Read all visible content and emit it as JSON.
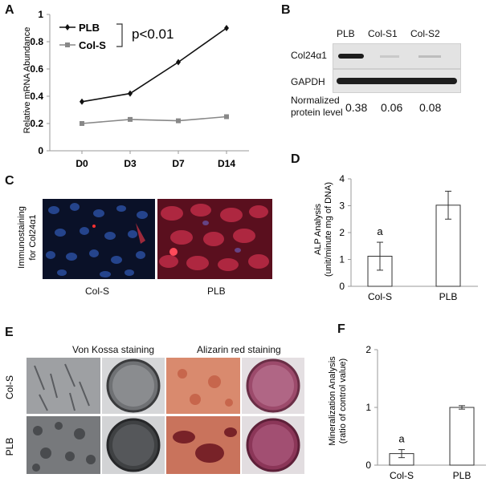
{
  "panels": {
    "A": {
      "letter": "A",
      "ylabel": "Relative mRNA Abundance",
      "pvalue": "p<0.01",
      "legend": [
        "PLB",
        "Col-S"
      ],
      "chart_data": {
        "type": "line",
        "categories": [
          "D0",
          "D3",
          "D7",
          "D14"
        ],
        "series": [
          {
            "name": "PLB",
            "values": [
              0.36,
              0.42,
              0.65,
              0.9
            ],
            "color": "#111111"
          },
          {
            "name": "Col-S",
            "values": [
              0.2,
              0.23,
              0.22,
              0.25
            ],
            "color": "#888888"
          }
        ],
        "ylim": [
          0,
          1
        ],
        "yticks": [
          "0",
          "0.2",
          "0.4",
          "0.6",
          "0.8",
          "1"
        ]
      }
    },
    "B": {
      "letter": "B",
      "lanes": [
        "PLB",
        "Col-S1",
        "Col-S2"
      ],
      "rows": [
        "Col24α1",
        "GAPDH"
      ],
      "norm_label_1": "Normalized",
      "norm_label_2": "protein level",
      "norm_values": [
        "0.38",
        "0.06",
        "0.08"
      ]
    },
    "C": {
      "letter": "C",
      "ylabel_1": "Immunostaining",
      "ylabel_2": "for Col24α1",
      "captions": [
        "Col-S",
        "PLB"
      ]
    },
    "D": {
      "letter": "D",
      "ylabel_1": "ALP Analysis",
      "ylabel_2": "(unit/minute mg of DNA)",
      "sig": "a",
      "chart_data": {
        "type": "bar",
        "categories": [
          "Col-S",
          "PLB"
        ],
        "values": [
          1.12,
          3.02
        ],
        "errors": [
          0.52,
          0.52
        ],
        "ylim": [
          0,
          4
        ],
        "yticks": [
          "0",
          "1",
          "2",
          "3",
          "4"
        ]
      }
    },
    "E": {
      "letter": "E",
      "headers": [
        "Von Kossa staining",
        "Alizarin red staining"
      ],
      "rows": [
        "Col-S",
        "PLB"
      ]
    },
    "F": {
      "letter": "F",
      "ylabel_1": "Mineralization Analysis",
      "ylabel_2": "(ratio of control value)",
      "sig": "a",
      "chart_data": {
        "type": "bar",
        "categories": [
          "Col-S",
          "PLB"
        ],
        "values": [
          0.2,
          1.0
        ],
        "errors": [
          0.07,
          0.03
        ],
        "ylim": [
          0,
          2
        ],
        "yticks": [
          "0",
          "1",
          "2"
        ]
      }
    }
  }
}
